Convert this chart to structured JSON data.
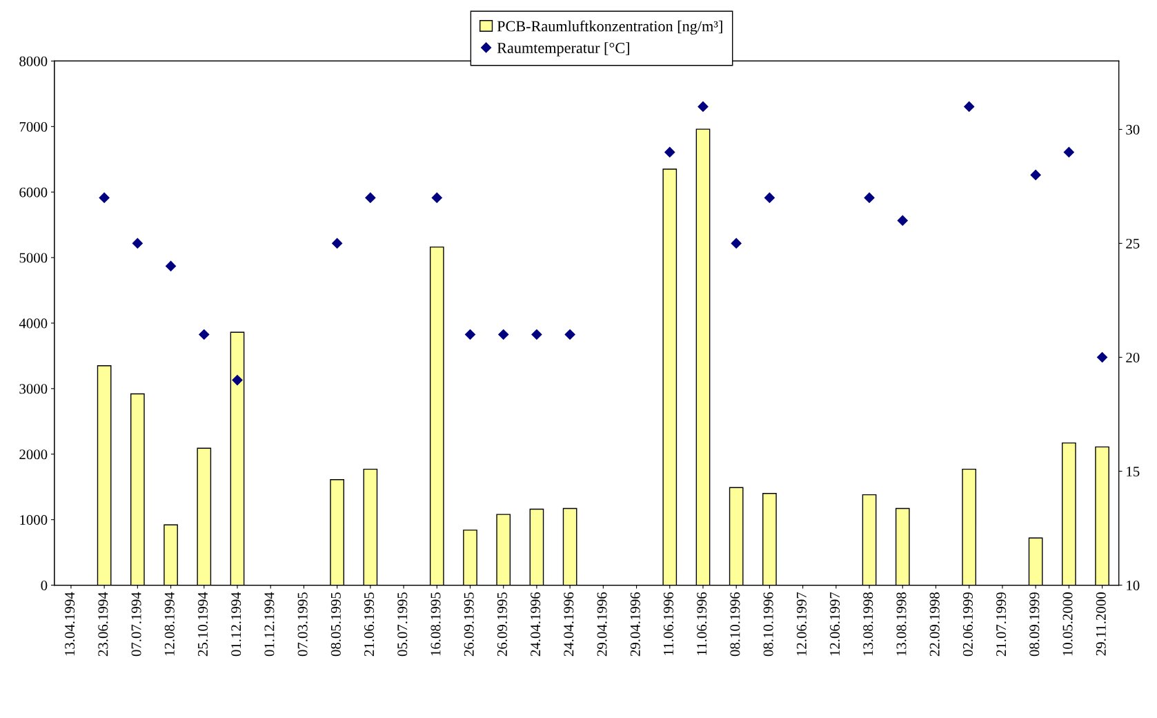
{
  "chart_data": {
    "type": "bar",
    "categories": [
      "13.04.1994",
      "23.06.1994",
      "07.07.1994",
      "12.08.1994",
      "25.10.1994",
      "01.12.1994",
      "01.12.1994",
      "07.03.1995",
      "08.05.1995",
      "21.06.1995",
      "05.07.1995",
      "16.08.1995",
      "26.09.1995",
      "26.09.1995",
      "24.04.1996",
      "24.04.1996",
      "29.04.1996",
      "29.04.1996",
      "11.06.1996",
      "11.06.1996",
      "08.10.1996",
      "08.10.1996",
      "12.06.1997",
      "12.06.1997",
      "13.08.1998",
      "13.08.1998",
      "22.09.1998",
      "02.06.1999",
      "21.07.1999",
      "08.09.1999",
      "10.05.2000",
      "29.11.2000"
    ],
    "series": [
      {
        "name": "PCB-Raumluftkonzentration [ng/m³]",
        "color": "#ffff99",
        "values": [
          null,
          3350,
          2920,
          920,
          2090,
          3860,
          null,
          null,
          1610,
          1770,
          null,
          5160,
          840,
          1080,
          1160,
          1170,
          null,
          null,
          6350,
          6960,
          1490,
          1400,
          null,
          null,
          1380,
          1170,
          null,
          1770,
          null,
          720,
          2170,
          2110
        ]
      },
      {
        "name": "Raumtemperatur [°C]",
        "type": "scatter",
        "axis": "y2",
        "color": "#000080",
        "marker": "diamond",
        "values": [
          null,
          27,
          25,
          24,
          21,
          19,
          null,
          null,
          25,
          27,
          null,
          27,
          21,
          21,
          21,
          21,
          null,
          null,
          29,
          31,
          25,
          27,
          null,
          null,
          27,
          26,
          null,
          31,
          null,
          28,
          29,
          20
        ]
      }
    ],
    "ylim": [
      0,
      8000
    ],
    "yticks": [
      0,
      1000,
      2000,
      3000,
      4000,
      5000,
      6000,
      7000,
      8000
    ],
    "y2lim": [
      10,
      33
    ],
    "y2ticks": [
      10,
      15,
      20,
      25,
      30
    ],
    "grid": false,
    "legend": "top"
  }
}
